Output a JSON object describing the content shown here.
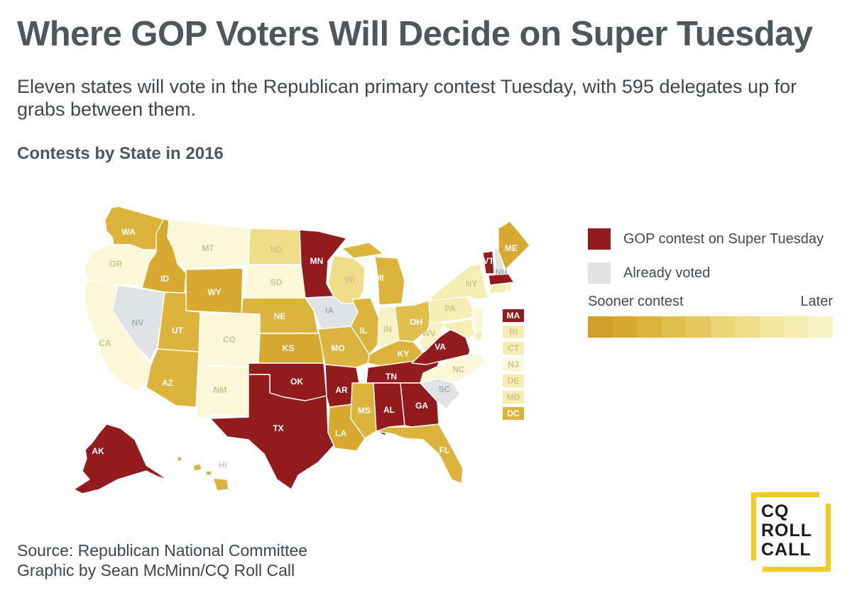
{
  "header": {
    "title": "Where GOP Voters Will Decide on Super Tuesday",
    "subtitle": "Eleven states will vote in the Republican primary contest Tuesday, with 595 delegates up for grabs between them.",
    "section_title": "Contests by State in 2016"
  },
  "colors": {
    "super_tuesday": "#921b1e",
    "already_voted": "#e1e2e3",
    "order": [
      "#d19e29",
      "#d7a92f",
      "#dcb43c",
      "#e0bf4d",
      "#e5c960",
      "#ead474",
      "#efdd8a",
      "#f3e69f",
      "#f6edb3",
      "#f8f3c7",
      "#fbf7d8"
    ]
  },
  "legend": {
    "super_tuesday_label": "GOP contest on Super Tuesday",
    "already_voted_label": "Already voted",
    "sooner_label": "Sooner contest",
    "later_label": "Later"
  },
  "states": [
    {
      "abbr": "WA",
      "status": "order",
      "level": 2
    },
    {
      "abbr": "OR",
      "status": "order",
      "level": 10
    },
    {
      "abbr": "CA",
      "status": "order",
      "level": 10
    },
    {
      "abbr": "NV",
      "status": "voted"
    },
    {
      "abbr": "ID",
      "status": "order",
      "level": 1
    },
    {
      "abbr": "MT",
      "status": "order",
      "level": 10
    },
    {
      "abbr": "WY",
      "status": "order",
      "level": 1
    },
    {
      "abbr": "UT",
      "status": "order",
      "level": 2
    },
    {
      "abbr": "AZ",
      "status": "order",
      "level": 2
    },
    {
      "abbr": "CO",
      "status": "order",
      "level": 10
    },
    {
      "abbr": "NM",
      "status": "order",
      "level": 10
    },
    {
      "abbr": "ND",
      "status": "order",
      "level": 6
    },
    {
      "abbr": "SD",
      "status": "order",
      "level": 10
    },
    {
      "abbr": "NE",
      "status": "order",
      "level": 2
    },
    {
      "abbr": "KS",
      "status": "order",
      "level": 1
    },
    {
      "abbr": "OK",
      "status": "super"
    },
    {
      "abbr": "TX",
      "status": "super"
    },
    {
      "abbr": "MN",
      "status": "super"
    },
    {
      "abbr": "IA",
      "status": "voted"
    },
    {
      "abbr": "MO",
      "status": "order",
      "level": 2
    },
    {
      "abbr": "AR",
      "status": "super"
    },
    {
      "abbr": "LA",
      "status": "order",
      "level": 1
    },
    {
      "abbr": "WI",
      "status": "order",
      "level": 6
    },
    {
      "abbr": "IL",
      "status": "order",
      "level": 2
    },
    {
      "abbr": "MI",
      "status": "order",
      "level": 2
    },
    {
      "abbr": "IN",
      "status": "order",
      "level": 9
    },
    {
      "abbr": "OH",
      "status": "order",
      "level": 3
    },
    {
      "abbr": "KY",
      "status": "order",
      "level": 2
    },
    {
      "abbr": "TN",
      "status": "super"
    },
    {
      "abbr": "MS",
      "status": "order",
      "level": 2
    },
    {
      "abbr": "AL",
      "status": "super"
    },
    {
      "abbr": "GA",
      "status": "super"
    },
    {
      "abbr": "FL",
      "status": "order",
      "level": 2
    },
    {
      "abbr": "SC",
      "status": "voted"
    },
    {
      "abbr": "NC",
      "status": "order",
      "level": 10
    },
    {
      "abbr": "VA",
      "status": "super"
    },
    {
      "abbr": "WV",
      "status": "order",
      "level": 9
    },
    {
      "abbr": "PA",
      "status": "order",
      "level": 8
    },
    {
      "abbr": "NY",
      "status": "order",
      "level": 8
    },
    {
      "abbr": "VT",
      "status": "super"
    },
    {
      "abbr": "NH",
      "status": "voted"
    },
    {
      "abbr": "ME",
      "status": "order",
      "level": 1
    },
    {
      "abbr": "AK",
      "status": "super"
    },
    {
      "abbr": "HI",
      "status": "order",
      "level": 2
    }
  ],
  "small_states": [
    {
      "abbr": "MA",
      "status": "super"
    },
    {
      "abbr": "RI",
      "status": "order",
      "level": 8
    },
    {
      "abbr": "CT",
      "status": "order",
      "level": 8
    },
    {
      "abbr": "NJ",
      "status": "order",
      "level": 10
    },
    {
      "abbr": "DE",
      "status": "order",
      "level": 8
    },
    {
      "abbr": "MD",
      "status": "order",
      "level": 8
    },
    {
      "abbr": "DC",
      "status": "order",
      "level": 2
    }
  ],
  "footer": {
    "source_line": "Source: Republican National Committee",
    "credit_line": "Graphic by Sean McMinn/CQ Roll Call"
  },
  "logo": {
    "line1": "CQ",
    "line2": "ROLL",
    "line3": "CALL"
  }
}
